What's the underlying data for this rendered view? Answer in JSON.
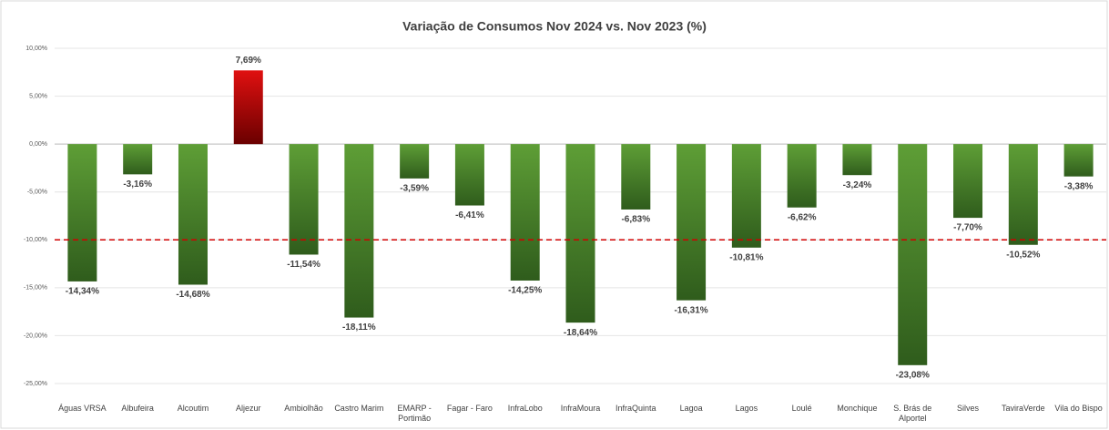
{
  "chart_data": {
    "type": "bar",
    "title": "Variação de Consumos Nov 2024 vs. Nov 2023 (%)",
    "categories": [
      "Águas VRSA",
      "Albufeira",
      "Alcoutim",
      "Aljezur",
      "Ambiolhão",
      "Castro Marim",
      "EMARP - Portimão",
      "Fagar - Faro",
      "InfraLobo",
      "InfraMoura",
      "InfraQuinta",
      "Lagoa",
      "Lagos",
      "Loulé",
      "Monchique",
      "S. Brás de Alportel",
      "Silves",
      "TaviraVerde",
      "Vila do Bispo"
    ],
    "values": [
      -14.34,
      -3.16,
      -14.68,
      7.69,
      -11.54,
      -18.11,
      -3.59,
      -6.41,
      -14.25,
      -18.64,
      -6.83,
      -16.31,
      -10.81,
      -6.62,
      -3.24,
      -23.08,
      -7.7,
      -10.52,
      -3.38
    ],
    "value_labels": [
      "-14,34%",
      "-3,16%",
      "-14,68%",
      "7,69%",
      "-11,54%",
      "-18,11%",
      "-3,59%",
      "-6,41%",
      "-14,25%",
      "-18,64%",
      "-6,83%",
      "-16,31%",
      "-10,81%",
      "-6,62%",
      "-3,24%",
      "-23,08%",
      "-7,70%",
      "-10,52%",
      "-3,38%"
    ],
    "colors": {
      "negative": [
        "#5e9e36",
        "#2f5c1c"
      ],
      "positive": [
        "#e01010",
        "#6a0000"
      ]
    },
    "reference_line": {
      "value": -10,
      "color": "#d00000"
    },
    "ylim": [
      -25,
      10
    ],
    "yticks": [
      {
        "value": 10,
        "label": "10,00%"
      },
      {
        "value": 5,
        "label": "5,00%"
      },
      {
        "value": 0,
        "label": "0,00%"
      },
      {
        "value": -5,
        "label": "-5,00%"
      },
      {
        "value": -10,
        "label": "-10,00%"
      },
      {
        "value": -15,
        "label": "-15,00%"
      },
      {
        "value": -20,
        "label": "-20,00%"
      },
      {
        "value": -25,
        "label": "-25,00%"
      }
    ],
    "grid": true
  }
}
